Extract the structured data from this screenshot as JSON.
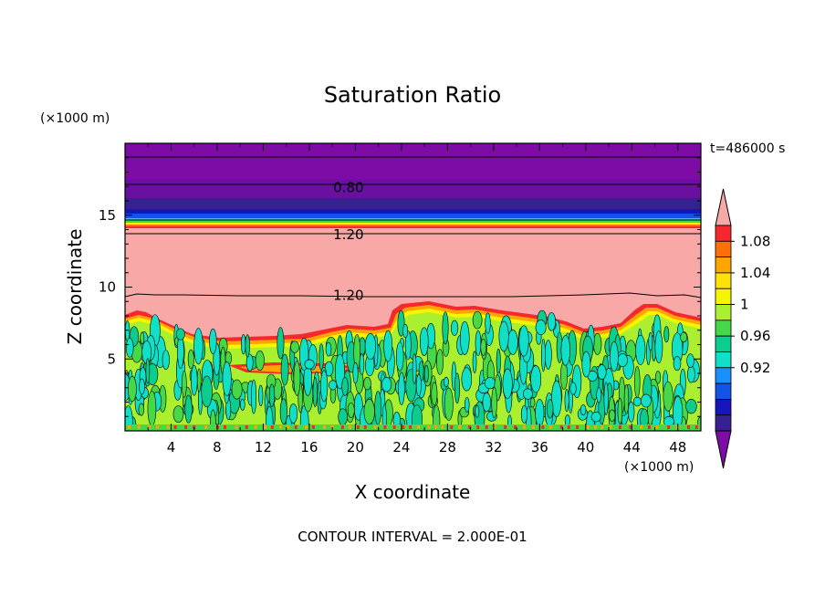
{
  "chart_data": {
    "type": "heatmap",
    "title": "Saturation Ratio",
    "xlabel": "X coordinate",
    "ylabel": "Z coordinate",
    "x_unit": "(×1000 m)",
    "y_unit": "(×1000 m)",
    "time_label": "t=486000 s",
    "footer": "CONTOUR INTERVAL = 2.000E-01",
    "xlim": [
      0,
      50
    ],
    "ylim": [
      0,
      20
    ],
    "x_ticks": [
      "4",
      "8",
      "12",
      "16",
      "20",
      "24",
      "28",
      "32",
      "36",
      "40",
      "44",
      "48"
    ],
    "y_ticks": [
      "5",
      "10",
      "15"
    ],
    "contour_labels": [
      {
        "text": "0.80",
        "x": 17.5,
        "z": 17.0
      },
      {
        "text": "1.20",
        "x": 17.5,
        "z": 13.7
      },
      {
        "text": "1.20",
        "x": 17.5,
        "z": 9.5
      }
    ],
    "colorbar": {
      "labels": [
        "1.08",
        "1.04",
        "1",
        "0.96",
        "0.92"
      ],
      "levels": [
        {
          "color": "#f9a8a8"
        },
        {
          "color": "#f5292d"
        },
        {
          "color": "#ff6f0a"
        },
        {
          "color": "#ffa500"
        },
        {
          "color": "#ffe20b"
        },
        {
          "color": "#f5f500"
        },
        {
          "color": "#aaf02e"
        },
        {
          "color": "#46d846"
        },
        {
          "color": "#0ccc8e"
        },
        {
          "color": "#0fe0c7"
        },
        {
          "color": "#1a90ff"
        },
        {
          "color": "#1255e6"
        },
        {
          "color": "#1515bb"
        },
        {
          "color": "#37208f"
        },
        {
          "color": "#7c0ca5"
        }
      ]
    }
  }
}
